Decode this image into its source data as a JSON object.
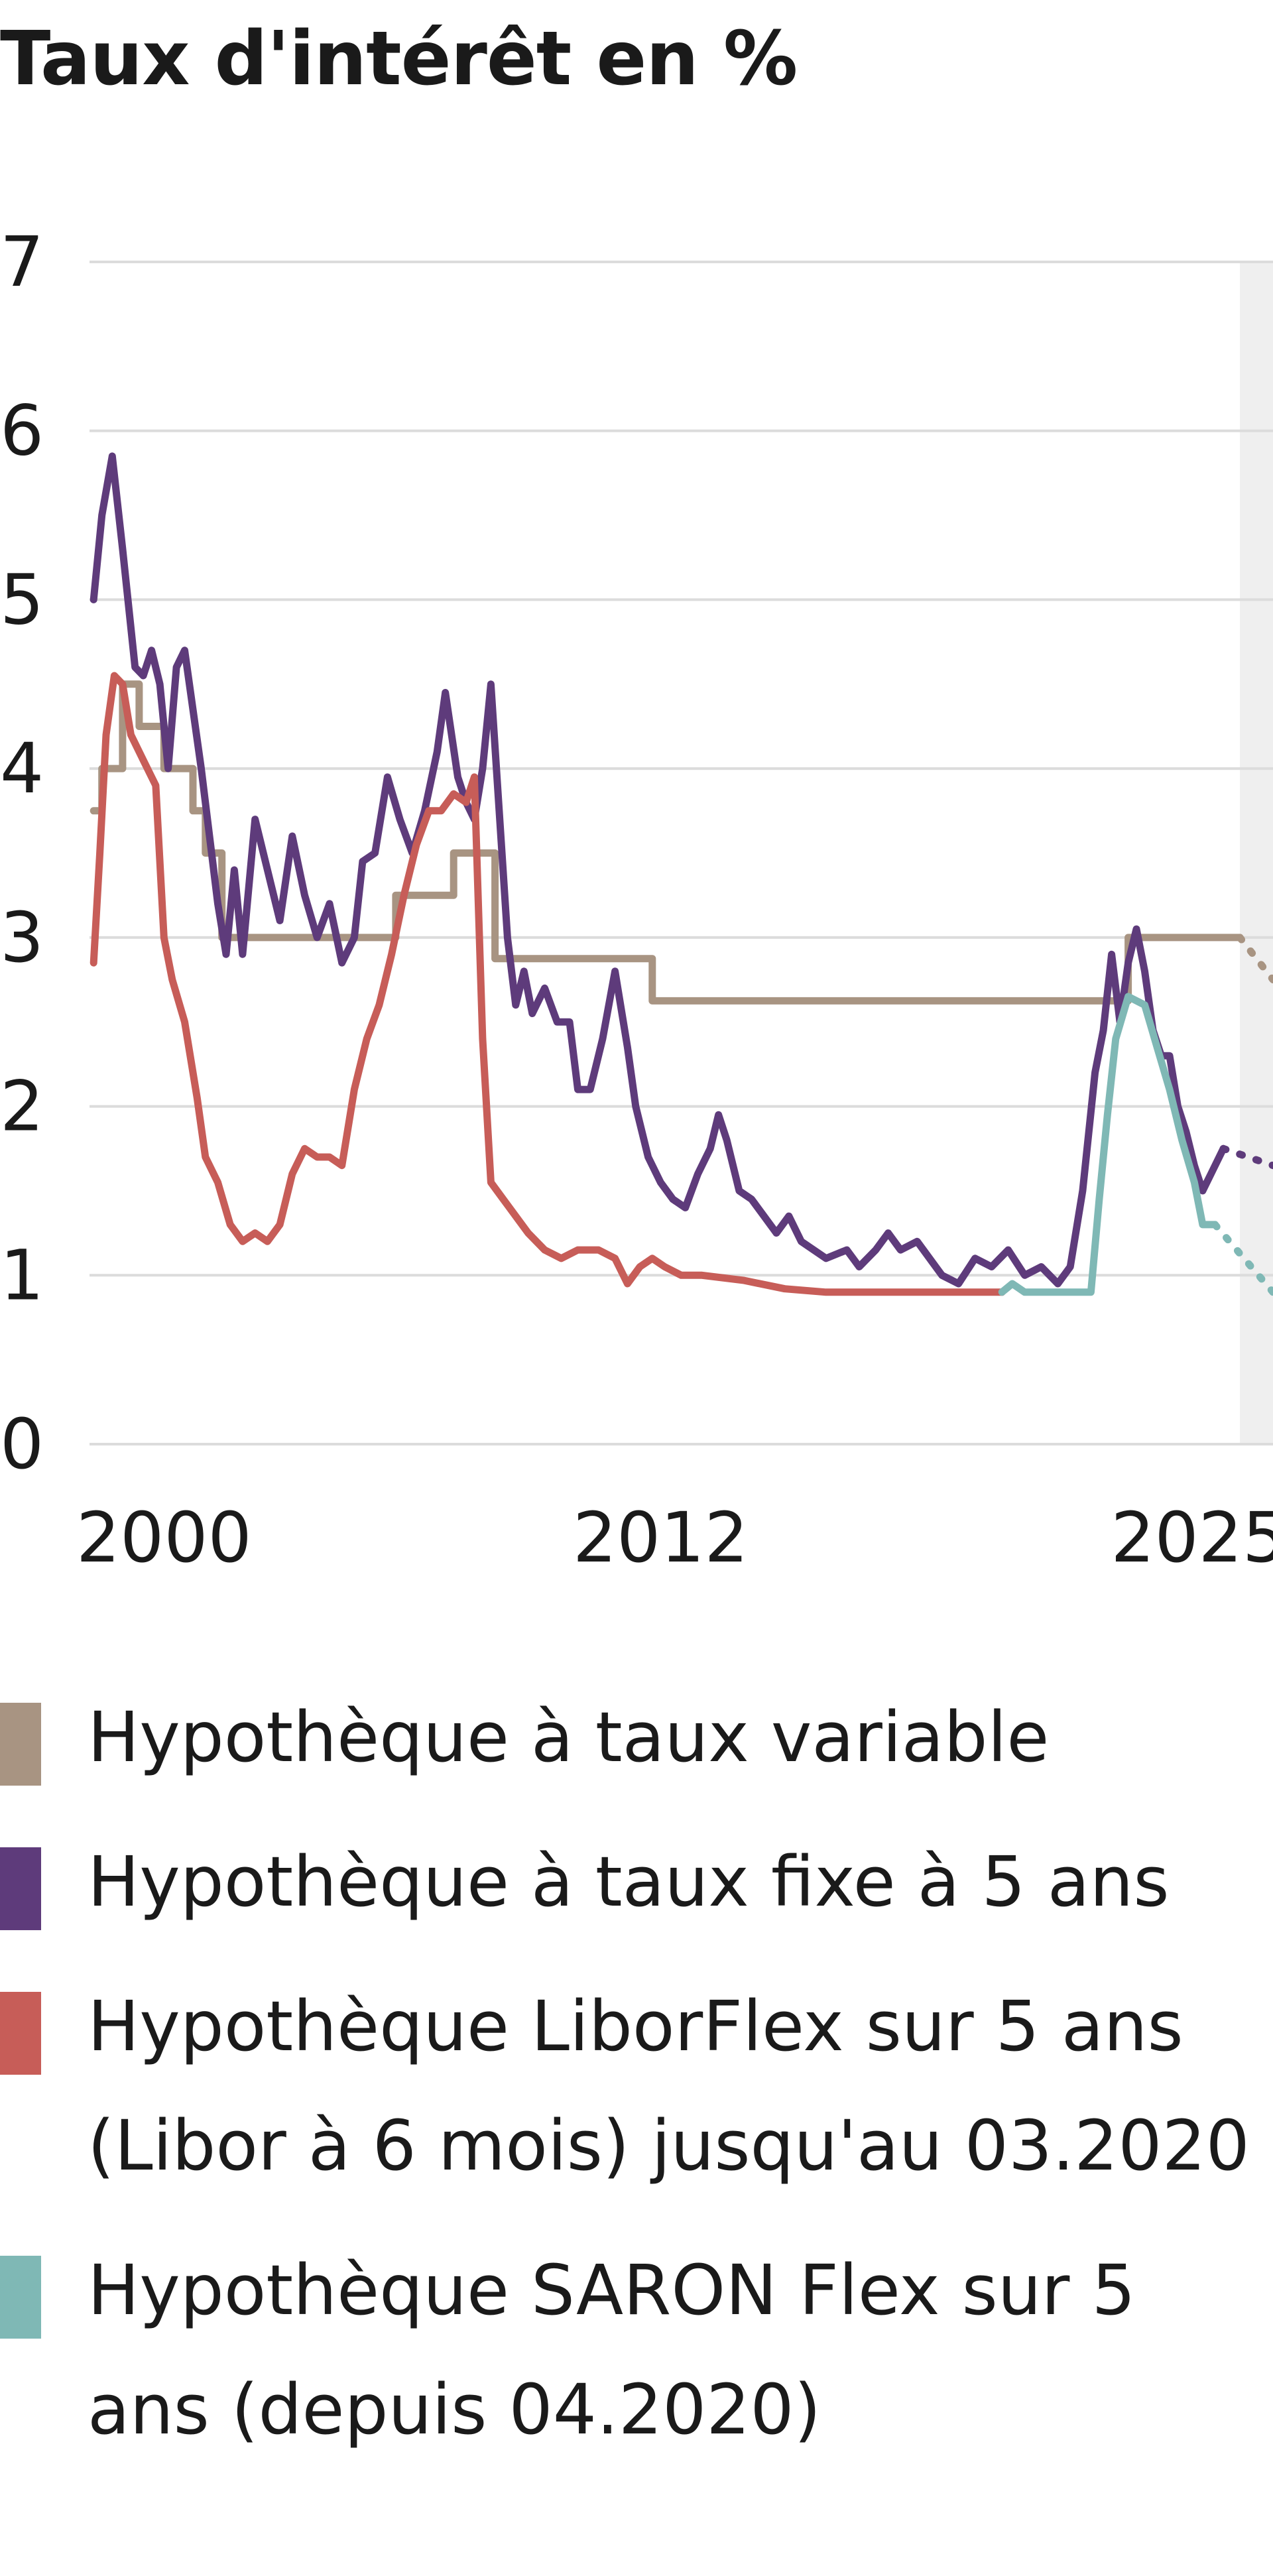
{
  "chart_data": {
    "type": "line",
    "title": "Taux d'intérêt en %",
    "xlabel": "",
    "ylabel": "",
    "x_ticks": [
      "2000",
      "2012",
      "2025"
    ],
    "y_ticks": [
      0,
      1,
      2,
      3,
      4,
      5,
      6,
      7
    ],
    "ylim": [
      0,
      7
    ],
    "xlim": [
      1998.2,
      2026.8
    ],
    "grid": true,
    "legend_position": "bottom",
    "forecast_shaded_from": 2026.0,
    "series": [
      {
        "name": "Hypothèque à taux variable",
        "color": "#a89482",
        "step": true,
        "values": [
          [
            1998.3,
            3.75
          ],
          [
            1998.5,
            4.0
          ],
          [
            1999.0,
            4.5
          ],
          [
            1999.4,
            4.25
          ],
          [
            2000.0,
            4.0
          ],
          [
            2000.7,
            3.75
          ],
          [
            2001.0,
            3.5
          ],
          [
            2001.4,
            3.0
          ],
          [
            2005.2,
            3.0
          ],
          [
            2005.6,
            3.25
          ],
          [
            2006.5,
            3.25
          ],
          [
            2007.0,
            3.5
          ],
          [
            2007.5,
            3.5
          ],
          [
            2008.0,
            2.875
          ],
          [
            2011.7,
            2.875
          ],
          [
            2011.8,
            2.625
          ],
          [
            2023.0,
            2.625
          ],
          [
            2023.3,
            3.0
          ],
          [
            2026.0,
            3.0
          ]
        ],
        "forecast": [
          [
            2026.0,
            3.0
          ],
          [
            2026.8,
            2.75
          ]
        ]
      },
      {
        "name": "Hypothèque à taux fixe à 5 ans",
        "color": "#5e3b7b",
        "step": false,
        "values": [
          [
            1998.3,
            5.0
          ],
          [
            1998.5,
            5.5
          ],
          [
            1998.75,
            5.85
          ],
          [
            1999.0,
            5.3
          ],
          [
            1999.3,
            4.6
          ],
          [
            1999.5,
            4.55
          ],
          [
            1999.7,
            4.7
          ],
          [
            1999.9,
            4.5
          ],
          [
            2000.1,
            4.0
          ],
          [
            2000.3,
            4.6
          ],
          [
            2000.5,
            4.7
          ],
          [
            2000.7,
            4.35
          ],
          [
            2000.9,
            4.0
          ],
          [
            2001.1,
            3.6
          ],
          [
            2001.3,
            3.2
          ],
          [
            2001.5,
            2.9
          ],
          [
            2001.7,
            3.4
          ],
          [
            2001.9,
            2.9
          ],
          [
            2002.2,
            3.7
          ],
          [
            2002.5,
            3.4
          ],
          [
            2002.8,
            3.1
          ],
          [
            2003.1,
            3.6
          ],
          [
            2003.4,
            3.25
          ],
          [
            2003.7,
            3.0
          ],
          [
            2004.0,
            3.2
          ],
          [
            2004.3,
            2.85
          ],
          [
            2004.6,
            3.0
          ],
          [
            2004.8,
            3.45
          ],
          [
            2005.1,
            3.5
          ],
          [
            2005.4,
            3.95
          ],
          [
            2005.7,
            3.7
          ],
          [
            2006.0,
            3.5
          ],
          [
            2006.3,
            3.75
          ],
          [
            2006.6,
            4.1
          ],
          [
            2006.8,
            4.45
          ],
          [
            2007.1,
            3.95
          ],
          [
            2007.3,
            3.8
          ],
          [
            2007.5,
            3.7
          ],
          [
            2007.7,
            4.0
          ],
          [
            2007.9,
            4.5
          ],
          [
            2008.1,
            3.75
          ],
          [
            2008.3,
            3.0
          ],
          [
            2008.5,
            2.6
          ],
          [
            2008.7,
            2.8
          ],
          [
            2008.9,
            2.55
          ],
          [
            2009.2,
            2.7
          ],
          [
            2009.5,
            2.5
          ],
          [
            2009.8,
            2.5
          ],
          [
            2010.0,
            2.1
          ],
          [
            2010.3,
            2.1
          ],
          [
            2010.6,
            2.4
          ],
          [
            2010.9,
            2.8
          ],
          [
            2011.2,
            2.35
          ],
          [
            2011.4,
            2.0
          ],
          [
            2011.7,
            1.7
          ],
          [
            2012.0,
            1.55
          ],
          [
            2012.3,
            1.45
          ],
          [
            2012.6,
            1.4
          ],
          [
            2012.9,
            1.6
          ],
          [
            2013.2,
            1.75
          ],
          [
            2013.4,
            1.95
          ],
          [
            2013.6,
            1.8
          ],
          [
            2013.9,
            1.5
          ],
          [
            2014.2,
            1.45
          ],
          [
            2014.5,
            1.35
          ],
          [
            2014.8,
            1.25
          ],
          [
            2015.1,
            1.35
          ],
          [
            2015.4,
            1.2
          ],
          [
            2015.7,
            1.15
          ],
          [
            2016.0,
            1.1
          ],
          [
            2016.5,
            1.15
          ],
          [
            2016.8,
            1.05
          ],
          [
            2017.2,
            1.15
          ],
          [
            2017.5,
            1.25
          ],
          [
            2017.8,
            1.15
          ],
          [
            2018.2,
            1.2
          ],
          [
            2018.5,
            1.1
          ],
          [
            2018.8,
            1.0
          ],
          [
            2019.2,
            0.95
          ],
          [
            2019.6,
            1.1
          ],
          [
            2020.0,
            1.05
          ],
          [
            2020.4,
            1.15
          ],
          [
            2020.8,
            1.0
          ],
          [
            2021.2,
            1.05
          ],
          [
            2021.6,
            0.95
          ],
          [
            2021.9,
            1.05
          ],
          [
            2022.2,
            1.5
          ],
          [
            2022.5,
            2.2
          ],
          [
            2022.7,
            2.45
          ],
          [
            2022.9,
            2.9
          ],
          [
            2023.1,
            2.5
          ],
          [
            2023.3,
            2.85
          ],
          [
            2023.5,
            3.05
          ],
          [
            2023.7,
            2.8
          ],
          [
            2023.9,
            2.45
          ],
          [
            2024.1,
            2.3
          ],
          [
            2024.3,
            2.3
          ],
          [
            2024.5,
            2.0
          ],
          [
            2024.7,
            1.85
          ],
          [
            2024.9,
            1.65
          ],
          [
            2025.1,
            1.5
          ],
          [
            2025.3,
            1.6
          ],
          [
            2025.6,
            1.75
          ]
        ],
        "forecast": [
          [
            2025.6,
            1.75
          ],
          [
            2026.8,
            1.65
          ]
        ]
      },
      {
        "name": "Hypothèque LiborFlex sur 5 ans (Libor à 6 mois) jusqu'au 03.2020",
        "color": "#c75d58",
        "step": false,
        "values": [
          [
            1998.3,
            2.85
          ],
          [
            1998.45,
            3.5
          ],
          [
            1998.6,
            4.2
          ],
          [
            1998.8,
            4.55
          ],
          [
            1999.0,
            4.5
          ],
          [
            1999.2,
            4.2
          ],
          [
            1999.5,
            4.05
          ],
          [
            1999.8,
            3.9
          ],
          [
            2000.0,
            3.0
          ],
          [
            2000.2,
            2.75
          ],
          [
            2000.5,
            2.5
          ],
          [
            2000.8,
            2.05
          ],
          [
            2001.0,
            1.7
          ],
          [
            2001.3,
            1.55
          ],
          [
            2001.6,
            1.3
          ],
          [
            2001.9,
            1.2
          ],
          [
            2002.2,
            1.25
          ],
          [
            2002.5,
            1.2
          ],
          [
            2002.8,
            1.3
          ],
          [
            2003.1,
            1.6
          ],
          [
            2003.4,
            1.75
          ],
          [
            2003.7,
            1.7
          ],
          [
            2004.0,
            1.7
          ],
          [
            2004.3,
            1.65
          ],
          [
            2004.6,
            2.1
          ],
          [
            2004.9,
            2.4
          ],
          [
            2005.2,
            2.6
          ],
          [
            2005.5,
            2.9
          ],
          [
            2005.8,
            3.25
          ],
          [
            2006.1,
            3.55
          ],
          [
            2006.4,
            3.75
          ],
          [
            2006.7,
            3.75
          ],
          [
            2007.0,
            3.85
          ],
          [
            2007.3,
            3.8
          ],
          [
            2007.5,
            3.95
          ],
          [
            2007.7,
            2.4
          ],
          [
            2007.9,
            1.55
          ],
          [
            2008.2,
            1.45
          ],
          [
            2008.5,
            1.35
          ],
          [
            2008.8,
            1.25
          ],
          [
            2009.2,
            1.15
          ],
          [
            2009.6,
            1.1
          ],
          [
            2010.0,
            1.15
          ],
          [
            2010.5,
            1.15
          ],
          [
            2010.9,
            1.1
          ],
          [
            2011.2,
            0.95
          ],
          [
            2011.5,
            1.05
          ],
          [
            2011.8,
            1.1
          ],
          [
            2012.1,
            1.05
          ],
          [
            2012.5,
            1.0
          ],
          [
            2013.0,
            1.0
          ],
          [
            2014.0,
            0.97
          ],
          [
            2015.0,
            0.92
          ],
          [
            2016.0,
            0.9
          ],
          [
            2020.25,
            0.9
          ]
        ]
      },
      {
        "name": "Hypothèque SARON Flex sur 5 ans (depuis 04.2020)",
        "color": "#7fb8b5",
        "step": false,
        "values": [
          [
            2020.25,
            0.9
          ],
          [
            2020.5,
            0.95
          ],
          [
            2020.8,
            0.9
          ],
          [
            2021.5,
            0.9
          ],
          [
            2022.0,
            0.9
          ],
          [
            2022.4,
            0.9
          ],
          [
            2022.6,
            1.45
          ],
          [
            2022.8,
            1.95
          ],
          [
            2023.0,
            2.4
          ],
          [
            2023.3,
            2.65
          ],
          [
            2023.7,
            2.6
          ],
          [
            2024.0,
            2.35
          ],
          [
            2024.3,
            2.1
          ],
          [
            2024.6,
            1.8
          ],
          [
            2024.9,
            1.55
          ],
          [
            2025.1,
            1.3
          ],
          [
            2025.4,
            1.3
          ]
        ],
        "forecast": [
          [
            2025.4,
            1.3
          ],
          [
            2026.8,
            0.9
          ]
        ]
      }
    ]
  },
  "legend": {
    "items": [
      {
        "label": "Hypothèque à taux variable",
        "color": "#a89482"
      },
      {
        "label": "Hypothèque à taux fixe à 5 ans",
        "color": "#5e3b7b"
      },
      {
        "label": "Hypothèque LiborFlex sur 5 ans (Libor à 6 mois) jusqu'au 03.2020",
        "color": "#c75d58"
      },
      {
        "label": "Hypothèque SARON Flex sur 5 ans (depuis 04.2020)",
        "color": "#7fb8b5"
      }
    ]
  }
}
